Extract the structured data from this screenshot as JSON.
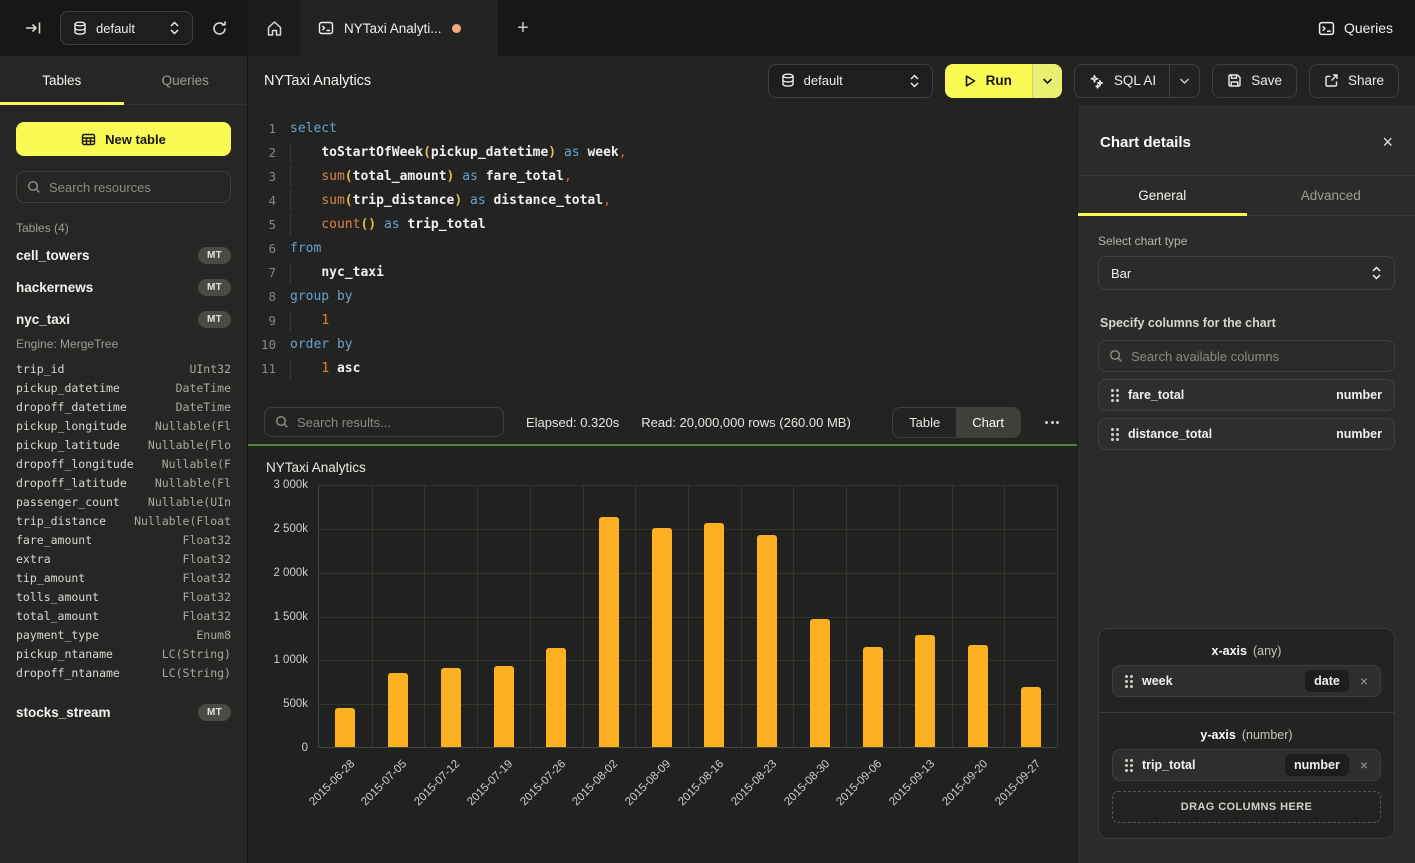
{
  "colors": {
    "accent_yellow": "#FAFA55",
    "bar_orange": "#FDB022",
    "chart_border_green": "#4C8A3F",
    "tab_dot": "#F6A77B"
  },
  "topbar": {
    "database": "default",
    "tab_title": "NYTaxi Analyti...",
    "queries_label": "Queries"
  },
  "sidebar": {
    "tabs": [
      "Tables",
      "Queries"
    ],
    "active_tab": "Tables",
    "new_table_label": "New table",
    "search_placeholder": "Search resources",
    "section_label": "Tables (4)",
    "tables": [
      {
        "name": "cell_towers",
        "badge": "MT"
      },
      {
        "name": "hackernews",
        "badge": "MT"
      },
      {
        "name": "nyc_taxi",
        "badge": "MT",
        "engine": "Engine: MergeTree",
        "columns": [
          [
            "trip_id",
            "UInt32"
          ],
          [
            "pickup_datetime",
            "DateTime"
          ],
          [
            "dropoff_datetime",
            "DateTime"
          ],
          [
            "pickup_longitude",
            "Nullable(Fl"
          ],
          [
            "pickup_latitude",
            "Nullable(Flo"
          ],
          [
            "dropoff_longitude",
            "Nullable(F"
          ],
          [
            "dropoff_latitude",
            "Nullable(Fl"
          ],
          [
            "passenger_count",
            "Nullable(UIn"
          ],
          [
            "trip_distance",
            "Nullable(Float"
          ],
          [
            "fare_amount",
            "Float32"
          ],
          [
            "extra",
            "Float32"
          ],
          [
            "tip_amount",
            "Float32"
          ],
          [
            "tolls_amount",
            "Float32"
          ],
          [
            "total_amount",
            "Float32"
          ],
          [
            "payment_type",
            "Enum8"
          ],
          [
            "pickup_ntaname",
            "LC(String)"
          ],
          [
            "dropoff_ntaname",
            "LC(String)"
          ]
        ]
      },
      {
        "name": "stocks_stream",
        "badge": "MT"
      }
    ]
  },
  "header": {
    "title": "NYTaxi Analytics",
    "database": "default",
    "run_label": "Run",
    "sql_ai_label": "SQL AI",
    "save_label": "Save",
    "share_label": "Share"
  },
  "editor": {
    "lines": [
      {
        "n": 1,
        "ind": false,
        "tokens": [
          [
            "select",
            "kw"
          ]
        ]
      },
      {
        "n": 2,
        "ind": true,
        "tokens": [
          [
            "toStartOfWeek",
            "id"
          ],
          [
            "(",
            "pr"
          ],
          [
            "pickup_datetime",
            "id"
          ],
          [
            ")",
            "pr"
          ],
          [
            " ",
            "pl"
          ],
          [
            "as",
            "kw"
          ],
          [
            " ",
            "pl"
          ],
          [
            "week",
            "id"
          ],
          [
            ",",
            "pu"
          ]
        ]
      },
      {
        "n": 3,
        "ind": true,
        "tokens": [
          [
            "sum",
            "fn"
          ],
          [
            "(",
            "pr"
          ],
          [
            "total_amount",
            "id"
          ],
          [
            ")",
            "pr"
          ],
          [
            " ",
            "pl"
          ],
          [
            "as",
            "kw"
          ],
          [
            " ",
            "pl"
          ],
          [
            "fare_total",
            "id"
          ],
          [
            ",",
            "pu"
          ]
        ]
      },
      {
        "n": 4,
        "ind": true,
        "tokens": [
          [
            "sum",
            "fn"
          ],
          [
            "(",
            "pr"
          ],
          [
            "trip_distance",
            "id"
          ],
          [
            ")",
            "pr"
          ],
          [
            " ",
            "pl"
          ],
          [
            "as",
            "kw"
          ],
          [
            " ",
            "pl"
          ],
          [
            "distance_total",
            "id"
          ],
          [
            ",",
            "pu"
          ]
        ]
      },
      {
        "n": 5,
        "ind": true,
        "tokens": [
          [
            "count",
            "fn"
          ],
          [
            "()",
            "pr"
          ],
          [
            " ",
            "pl"
          ],
          [
            "as",
            "kw"
          ],
          [
            " ",
            "pl"
          ],
          [
            "trip_total",
            "id"
          ]
        ]
      },
      {
        "n": 6,
        "ind": false,
        "tokens": [
          [
            "from",
            "kw"
          ]
        ]
      },
      {
        "n": 7,
        "ind": true,
        "tokens": [
          [
            "nyc_taxi",
            "id"
          ]
        ]
      },
      {
        "n": 8,
        "ind": false,
        "tokens": [
          [
            "group by",
            "kw"
          ]
        ]
      },
      {
        "n": 9,
        "ind": true,
        "tokens": [
          [
            "1",
            "nm"
          ]
        ]
      },
      {
        "n": 10,
        "ind": false,
        "tokens": [
          [
            "order by",
            "kw"
          ]
        ]
      },
      {
        "n": 11,
        "ind": true,
        "tokens": [
          [
            "1",
            "nm"
          ],
          [
            " ",
            "pl"
          ],
          [
            "asc",
            "id"
          ]
        ]
      }
    ]
  },
  "results_bar": {
    "search_placeholder": "Search results...",
    "elapsed": "Elapsed: 0.320s",
    "read": "Read: 20,000,000 rows (260.00 MB)",
    "toggle": [
      "Table",
      "Chart"
    ],
    "active_toggle": "Chart"
  },
  "chart_data": {
    "type": "bar",
    "title": "NYTaxi Analytics",
    "series_name": "trip_total",
    "categories": [
      "2015-06-28",
      "2015-07-05",
      "2015-07-12",
      "2015-07-19",
      "2015-07-26",
      "2015-08-02",
      "2015-08-09",
      "2015-08-16",
      "2015-08-23",
      "2015-08-30",
      "2015-09-06",
      "2015-09-13",
      "2015-09-20",
      "2015-09-27"
    ],
    "values": [
      445000,
      845000,
      900000,
      925000,
      1130000,
      2625000,
      2500000,
      2560000,
      2420000,
      1460000,
      1140000,
      1280000,
      1165000,
      680000
    ],
    "xlabel": "week",
    "ylabel": "",
    "ylim": [
      0,
      3000000
    ],
    "ytick_labels": [
      "0",
      "500k",
      "1 000k",
      "1 500k",
      "2 000k",
      "2 500k",
      "3 000k"
    ],
    "grid": true,
    "legend": false,
    "bar_color": "#FDB022"
  },
  "chart_panel": {
    "title": "Chart details",
    "tabs": [
      "General",
      "Advanced"
    ],
    "active_tab": "General",
    "chart_type_label": "Select chart type",
    "chart_type_value": "Bar",
    "columns_label": "Specify columns for the chart",
    "columns_search_placeholder": "Search available columns",
    "available_columns": [
      {
        "name": "fare_total",
        "type": "number"
      },
      {
        "name": "distance_total",
        "type": "number"
      }
    ],
    "x_axis": {
      "label": "x-axis",
      "constraint": "(any)",
      "chips": [
        {
          "name": "week",
          "type": "date"
        }
      ]
    },
    "y_axis": {
      "label": "y-axis",
      "constraint": "(number)",
      "chips": [
        {
          "name": "trip_total",
          "type": "number"
        }
      ],
      "drop_label": "DRAG COLUMNS HERE"
    }
  }
}
